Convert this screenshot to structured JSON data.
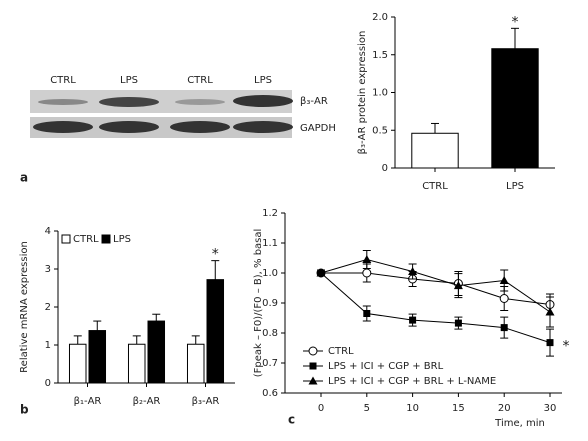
{
  "blot": {
    "lanes": [
      "CTRL",
      "LPS",
      "CTRL",
      "LPS"
    ],
    "bands": [
      "β₃-AR",
      "GAPDH"
    ]
  },
  "panel_labels": [
    "a",
    "b",
    "c"
  ],
  "chart_data": [
    {
      "type": "bar",
      "ylabel": "β₃-AR protein expression",
      "categories": [
        "CTRL",
        "LPS"
      ],
      "values": [
        0.46,
        1.58
      ],
      "errors": [
        0.13,
        0.27
      ],
      "colors": [
        "#ffffff",
        "#000000"
      ],
      "ylim": [
        0,
        2
      ],
      "yticks": [
        0,
        0.5,
        {
          "value": 1,
          "label": "1.0"
        },
        1.5,
        {
          "value": 2,
          "label": "2.0"
        }
      ],
      "annotations": [
        "*"
      ]
    },
    {
      "type": "bar",
      "ylabel": "Relative mRNA expression",
      "categories": [
        "β₁-AR",
        "β₂-AR",
        "β₃-AR"
      ],
      "series": [
        {
          "name": "CTRL",
          "color": "#ffffff",
          "values": [
            1.02,
            1.02,
            1.02
          ],
          "errors": [
            0.22,
            0.22,
            0.22
          ]
        },
        {
          "name": "LPS",
          "color": "#000000",
          "values": [
            1.38,
            1.63,
            2.72
          ],
          "errors": [
            0.25,
            0.18,
            0.5
          ]
        }
      ],
      "ylim": [
        0,
        4
      ],
      "yticks": [
        0,
        1,
        2,
        3,
        4
      ],
      "legend": "upper-left",
      "annotations": [
        "*"
      ]
    },
    {
      "type": "line",
      "ylabel": "(Fpeak – F0)/(F0 – B), % basal",
      "xlabel": "Time, min",
      "categories": [
        "0",
        "5",
        "10",
        "15",
        "20",
        "30"
      ],
      "series": [
        {
          "name": "CTRL",
          "color": "#000000",
          "marker": "circle-open",
          "values": [
            1.0,
            1.0,
            0.98,
            0.965,
            0.915,
            0.895
          ],
          "errors": [
            0.01,
            0.03,
            0.025,
            0.04,
            0.04,
            0.035
          ]
        },
        {
          "name": "LPS + ICI + CGP + BRL",
          "color": "#000000",
          "marker": "square",
          "values": [
            1.0,
            0.865,
            0.843,
            0.833,
            0.818,
            0.768
          ],
          "errors": [
            0.01,
            0.025,
            0.02,
            0.02,
            0.035,
            0.045
          ]
        },
        {
          "name": "LPS + ICI + CGP + BRL + L-NAME",
          "color": "#000000",
          "marker": "triangle",
          "values": [
            1.0,
            1.045,
            1.005,
            0.958,
            0.975,
            0.87
          ],
          "errors": [
            0.01,
            0.03,
            0.025,
            0.04,
            0.035,
            0.05
          ]
        }
      ],
      "ylim": [
        0.6,
        1.2
      ],
      "yticks": [
        0.6,
        0.7,
        0.8,
        0.9,
        {
          "value": 1,
          "label": "1.0"
        },
        1.1,
        1.2
      ],
      "legend": "lower-left",
      "annotations": [
        "*"
      ]
    }
  ]
}
